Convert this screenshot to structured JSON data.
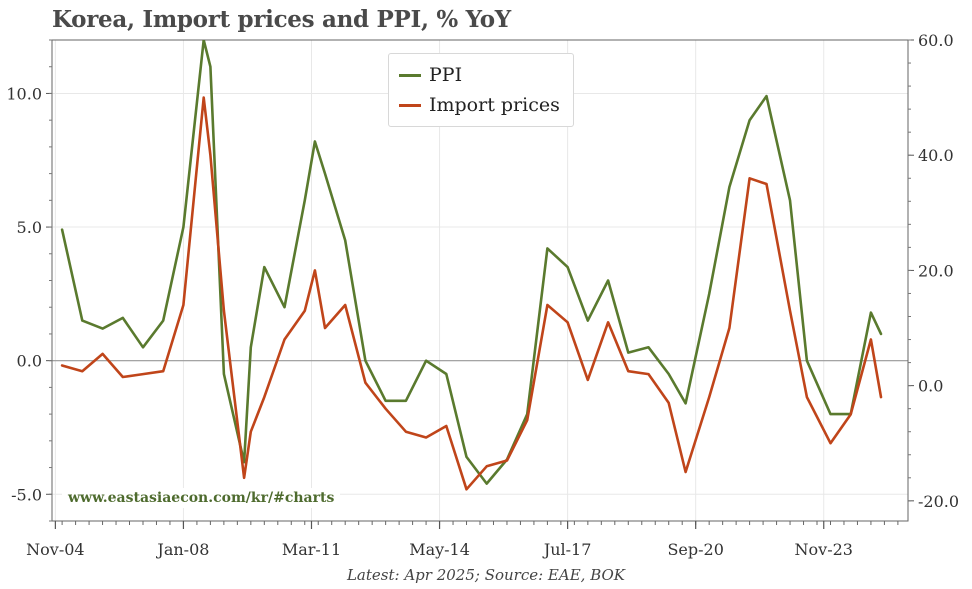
{
  "chart_data": {
    "type": "line",
    "title": "Korea, Import prices and PPI, % YoY",
    "x_tick_labels": [
      "Nov-04",
      "Jan-08",
      "Mar-11",
      "May-14",
      "Jul-17",
      "Sep-20",
      "Nov-23"
    ],
    "y_left": {
      "ylim": [
        -6,
        12
      ],
      "ticks": [
        -5.0,
        0.0,
        5.0,
        10.0
      ],
      "tick_labels": [
        "-5.0",
        "0.0",
        "5.0",
        "10.0"
      ]
    },
    "y_right": {
      "ylim": [
        -23.5,
        60
      ],
      "ticks": [
        -20,
        0,
        20,
        40,
        60
      ],
      "tick_labels": [
        "-20.0",
        "0.0",
        "20.0",
        "40.0",
        "60.0"
      ]
    },
    "grid": true,
    "legend_placement": "top-center",
    "series": [
      {
        "name": "PPI",
        "axis": "left",
        "color": "#5a7a2e",
        "x": [
          "Jan-05",
          "Jul-05",
          "Jan-06",
          "Jul-06",
          "Jan-07",
          "Jul-07",
          "Jan-08",
          "Jul-08",
          "Sep-08",
          "Jan-09",
          "Jul-09",
          "Sep-09",
          "Jan-10",
          "Jul-10",
          "Jan-11",
          "Apr-11",
          "Jul-11",
          "Jan-12",
          "Jul-12",
          "Jan-13",
          "Jul-13",
          "Jan-14",
          "Jul-14",
          "Jan-15",
          "Jul-15",
          "Jan-16",
          "Jul-16",
          "Jan-17",
          "Jul-17",
          "Jan-18",
          "Jul-18",
          "Jan-19",
          "Jul-19",
          "Jan-20",
          "Jun-20",
          "Jan-21",
          "Jul-21",
          "Jan-22",
          "Jun-22",
          "Jan-23",
          "Jun-23",
          "Jan-24",
          "Jul-24",
          "Jan-25",
          "Apr-25"
        ],
        "values": [
          4.9,
          1.5,
          1.2,
          1.6,
          0.5,
          1.5,
          5.0,
          12.0,
          11.0,
          -0.5,
          -3.8,
          0.5,
          3.5,
          2.0,
          6.0,
          8.2,
          7.0,
          4.5,
          0.0,
          -1.5,
          -1.5,
          0.0,
          -0.5,
          -3.6,
          -4.6,
          -3.7,
          -2.0,
          4.2,
          3.5,
          1.5,
          3.0,
          0.3,
          0.5,
          -0.5,
          -1.6,
          2.5,
          6.5,
          9.0,
          9.9,
          6.0,
          0.0,
          -2.0,
          -2.0,
          1.8,
          1.0
        ]
      },
      {
        "name": "Import prices",
        "axis": "right",
        "color": "#c0451a",
        "x": [
          "Jan-05",
          "Jul-05",
          "Jan-06",
          "Jul-06",
          "Jan-07",
          "Jul-07",
          "Jan-08",
          "Jul-08",
          "Sep-08",
          "Jan-09",
          "Jul-09",
          "Sep-09",
          "Jan-10",
          "Jul-10",
          "Jan-11",
          "Apr-11",
          "Jul-11",
          "Jan-12",
          "Jul-12",
          "Jan-13",
          "Jul-13",
          "Jan-14",
          "Jul-14",
          "Jan-15",
          "Jul-15",
          "Jan-16",
          "Jul-16",
          "Jan-17",
          "Jul-17",
          "Jan-18",
          "Jul-18",
          "Jan-19",
          "Jul-19",
          "Jan-20",
          "Jun-20",
          "Jan-21",
          "Jul-21",
          "Jan-22",
          "Jun-22",
          "Jan-23",
          "Jun-23",
          "Jan-24",
          "Jul-24",
          "Jan-25",
          "Apr-25"
        ],
        "values": [
          3.5,
          2.5,
          5.5,
          1.5,
          2.0,
          2.5,
          14.0,
          50.0,
          40.0,
          13.0,
          -16.0,
          -8.0,
          -2.0,
          8.0,
          13.0,
          20.0,
          10.0,
          14.0,
          0.5,
          -4.0,
          -8.0,
          -9.0,
          -7.0,
          -18.0,
          -14.0,
          -13.0,
          -6.0,
          14.0,
          11.0,
          1.0,
          11.0,
          2.5,
          2.0,
          -3.0,
          -15.0,
          -2.0,
          10.0,
          36.0,
          35.0,
          13.0,
          -2.0,
          -10.0,
          -5.0,
          8.0,
          -2.0
        ]
      }
    ]
  },
  "legend": {
    "items": [
      "PPI",
      "Import prices"
    ]
  },
  "watermark": "www.eastasiaecon.com/kr/#charts",
  "source": "Latest: Apr 2025; Source: EAE, BOK"
}
